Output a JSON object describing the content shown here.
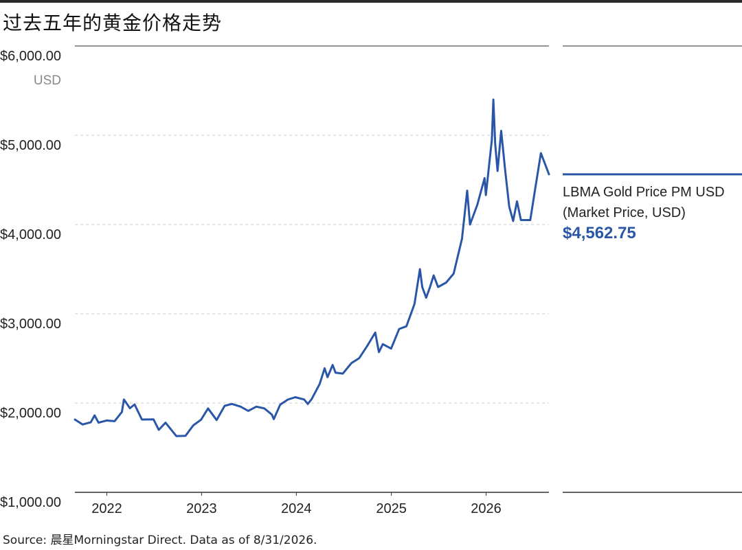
{
  "title": "过去五年的黄金价格走势",
  "source": "Source: 晨星Morningstar Direct. Data as of 8/31/2026.",
  "colors": {
    "line": "#2a56a8",
    "grid": "#cccccc",
    "axis": "#333333"
  },
  "legend": {
    "name": "LBMA Gold Price PM USD",
    "subname": "(Market Price, USD)",
    "value": "$4,562.75"
  },
  "chart_data": {
    "type": "line",
    "ylabel": "USD",
    "ylim": [
      1000,
      6000
    ],
    "yticks": [
      6000,
      5000,
      4000,
      3000,
      2000,
      1000
    ],
    "ytick_labels": [
      "$6,000.00",
      "$5,000.00",
      "$4,000.00",
      "$3,000.00",
      "$2,000.00",
      "$1,000.00"
    ],
    "xlim": [
      "2021-08-31",
      "2026-08-31"
    ],
    "xticks": [
      "2022-01-01",
      "2023-01-01",
      "2024-01-01",
      "2025-01-01",
      "2026-01-01"
    ],
    "xtick_labels": [
      "2022",
      "2023",
      "2024",
      "2025",
      "2026"
    ],
    "grid": "horizontal dashed",
    "legend_position": "right",
    "series": [
      {
        "name": "LBMA Gold Price PM USD",
        "points": [
          [
            "2021-08-31",
            1815
          ],
          [
            "2021-09-30",
            1760
          ],
          [
            "2021-10-31",
            1785
          ],
          [
            "2021-11-15",
            1862
          ],
          [
            "2021-11-30",
            1780
          ],
          [
            "2021-12-31",
            1805
          ],
          [
            "2022-01-31",
            1797
          ],
          [
            "2022-02-28",
            1900
          ],
          [
            "2022-03-08",
            2040
          ],
          [
            "2022-03-31",
            1942
          ],
          [
            "2022-04-18",
            1985
          ],
          [
            "2022-05-16",
            1815
          ],
          [
            "2022-06-30",
            1817
          ],
          [
            "2022-07-20",
            1700
          ],
          [
            "2022-08-15",
            1780
          ],
          [
            "2022-09-26",
            1630
          ],
          [
            "2022-10-31",
            1633
          ],
          [
            "2022-11-30",
            1750
          ],
          [
            "2022-12-30",
            1813
          ],
          [
            "2023-01-26",
            1940
          ],
          [
            "2023-02-28",
            1810
          ],
          [
            "2023-03-31",
            1969
          ],
          [
            "2023-04-28",
            1990
          ],
          [
            "2023-05-31",
            1960
          ],
          [
            "2023-06-30",
            1912
          ],
          [
            "2023-07-31",
            1960
          ],
          [
            "2023-08-31",
            1940
          ],
          [
            "2023-09-29",
            1870
          ],
          [
            "2023-10-06",
            1820
          ],
          [
            "2023-10-31",
            1983
          ],
          [
            "2023-11-30",
            2040
          ],
          [
            "2023-12-28",
            2065
          ],
          [
            "2024-01-31",
            2040
          ],
          [
            "2024-02-14",
            1990
          ],
          [
            "2024-02-29",
            2044
          ],
          [
            "2024-03-31",
            2214
          ],
          [
            "2024-04-19",
            2390
          ],
          [
            "2024-04-30",
            2290
          ],
          [
            "2024-05-20",
            2427
          ],
          [
            "2024-05-31",
            2340
          ],
          [
            "2024-06-28",
            2330
          ],
          [
            "2024-07-31",
            2447
          ],
          [
            "2024-08-30",
            2503
          ],
          [
            "2024-09-30",
            2640
          ],
          [
            "2024-10-31",
            2790
          ],
          [
            "2024-11-14",
            2570
          ],
          [
            "2024-11-29",
            2660
          ],
          [
            "2024-12-31",
            2610
          ],
          [
            "2025-01-31",
            2830
          ],
          [
            "2025-02-28",
            2860
          ],
          [
            "2025-03-31",
            3110
          ],
          [
            "2025-04-21",
            3500
          ],
          [
            "2025-04-30",
            3300
          ],
          [
            "2025-05-15",
            3180
          ],
          [
            "2025-05-30",
            3300
          ],
          [
            "2025-06-13",
            3430
          ],
          [
            "2025-06-30",
            3300
          ],
          [
            "2025-07-31",
            3350
          ],
          [
            "2025-08-29",
            3450
          ],
          [
            "2025-09-30",
            3840
          ],
          [
            "2025-10-20",
            4380
          ],
          [
            "2025-10-31",
            4000
          ],
          [
            "2025-11-28",
            4220
          ],
          [
            "2025-12-26",
            4520
          ],
          [
            "2025-12-31",
            4330
          ],
          [
            "2026-01-23",
            4950
          ],
          [
            "2026-01-29",
            5400
          ],
          [
            "2026-02-05",
            4900
          ],
          [
            "2026-02-14",
            4600
          ],
          [
            "2026-02-28",
            5050
          ],
          [
            "2026-03-15",
            4620
          ],
          [
            "2026-03-31",
            4200
          ],
          [
            "2026-04-15",
            4040
          ],
          [
            "2026-04-30",
            4260
          ],
          [
            "2026-05-15",
            4050
          ],
          [
            "2026-06-20",
            4050
          ],
          [
            "2026-07-10",
            4420
          ],
          [
            "2026-07-31",
            4800
          ],
          [
            "2026-08-31",
            4562.75
          ]
        ]
      }
    ]
  }
}
